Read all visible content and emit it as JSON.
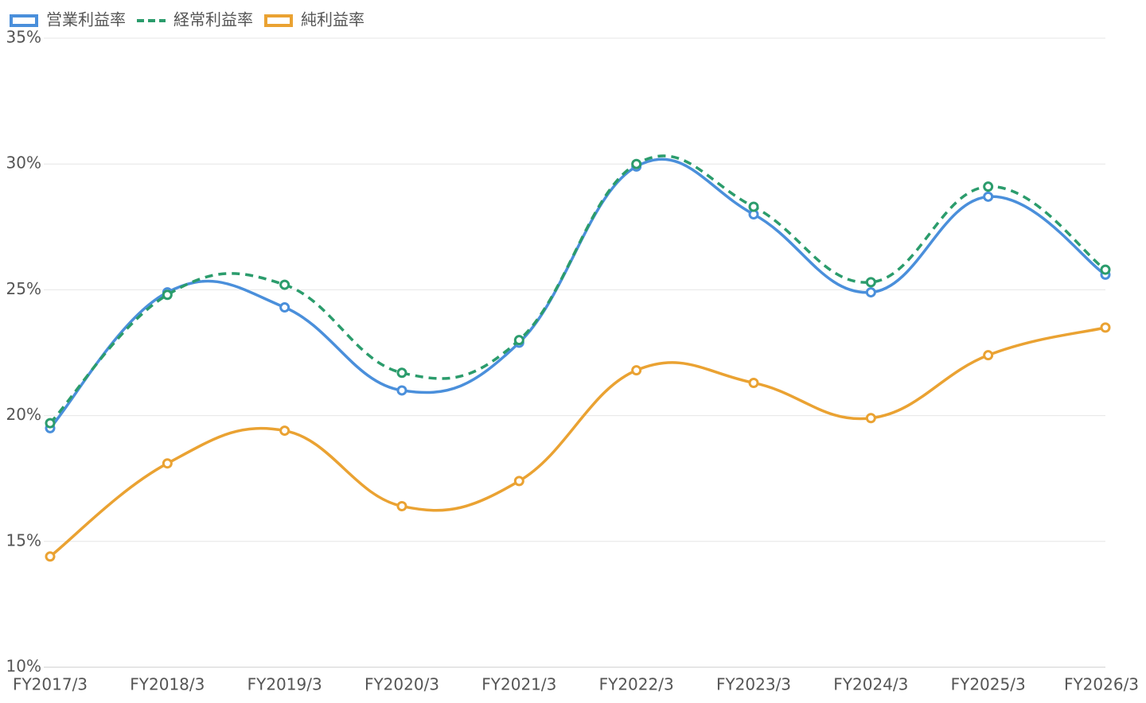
{
  "chart_data": {
    "type": "line",
    "categories": [
      "FY2017/3",
      "FY2018/3",
      "FY2019/3",
      "FY2020/3",
      "FY2021/3",
      "FY2022/3",
      "FY2023/3",
      "FY2024/3",
      "FY2025/3",
      "FY2026/3"
    ],
    "series": [
      {
        "name": "営業利益率",
        "color": "#4a8fdb",
        "values": [
          19.5,
          24.9,
          24.3,
          21.0,
          22.9,
          29.9,
          28.0,
          24.9,
          28.7,
          25.6
        ]
      },
      {
        "name": "経常利益率",
        "color": "#2b9c6c",
        "dashed": true,
        "values": [
          19.7,
          24.8,
          25.2,
          21.7,
          23.0,
          30.0,
          28.3,
          25.3,
          29.1,
          25.8
        ]
      },
      {
        "name": "純利益率",
        "color": "#eaa232",
        "values": [
          14.4,
          18.1,
          19.4,
          16.4,
          17.4,
          21.8,
          21.3,
          19.9,
          22.4,
          23.5
        ]
      }
    ],
    "ylim": [
      10,
      35
    ],
    "yticks": [
      {
        "value": 10,
        "label": "10%"
      },
      {
        "value": 15,
        "label": "15%"
      },
      {
        "value": 20,
        "label": "20%"
      },
      {
        "value": 25,
        "label": "25%"
      },
      {
        "value": 30,
        "label": "30%"
      },
      {
        "value": 35,
        "label": "35%"
      }
    ],
    "grid": true
  }
}
